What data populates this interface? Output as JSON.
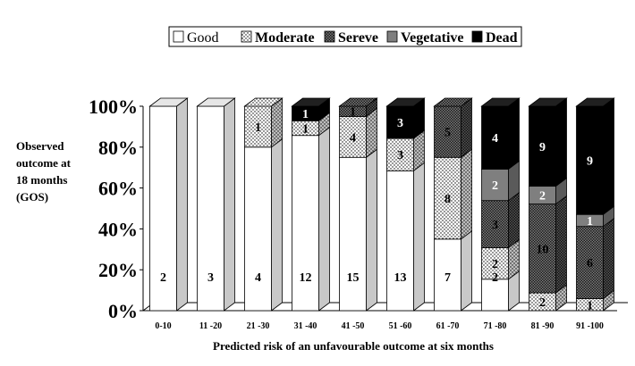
{
  "chart_data": {
    "type": "bar",
    "stacked": true,
    "percent_stacked": true,
    "three_d": true,
    "title": "",
    "xlabel": "Predicted risk of an unfavourable outcome at six months",
    "ylabel_lines": [
      "Observed",
      "outcome at",
      "18 months",
      "(GOS)"
    ],
    "ylim": [
      0,
      100
    ],
    "yticks": [
      "0%",
      "20%",
      "40%",
      "60%",
      "80%",
      "100%"
    ],
    "legend_position": "top",
    "categories": [
      "0-10",
      "11 -20",
      "21 -30",
      "31 -40",
      "41 -50",
      "51 -60",
      "61 -70",
      "71 -80",
      "81 -90",
      "91 -100"
    ],
    "series": [
      {
        "name": "Good",
        "pattern": "white",
        "counts": [
          2,
          3,
          4,
          12,
          15,
          13,
          7,
          2,
          0,
          0
        ],
        "labels": [
          "2",
          "3",
          "4",
          "12",
          "15",
          "13",
          "7",
          "2",
          "",
          ""
        ]
      },
      {
        "name": "Moderate",
        "pattern": "dots",
        "counts": [
          0,
          0,
          1,
          1,
          4,
          3,
          8,
          2,
          2,
          1
        ],
        "labels": [
          "",
          "",
          "1",
          "1",
          "4",
          "3",
          "8",
          "2",
          "2",
          "1"
        ]
      },
      {
        "name": "Sereve",
        "pattern": "grid",
        "counts": [
          0,
          0,
          0,
          0,
          1,
          0,
          5,
          3,
          10,
          6
        ],
        "labels": [
          "",
          "",
          "",
          "",
          "1",
          "",
          "5",
          "3",
          "10",
          "6"
        ]
      },
      {
        "name": "Vegetative",
        "pattern": "gray",
        "counts": [
          0,
          0,
          0,
          0,
          0,
          0,
          0,
          2,
          2,
          1
        ],
        "labels": [
          "",
          "",
          "",
          "",
          "",
          "",
          "",
          "2",
          "2",
          "1"
        ]
      },
      {
        "name": "Dead",
        "pattern": "black",
        "counts": [
          0,
          0,
          0,
          1,
          0,
          3,
          0,
          4,
          9,
          9
        ],
        "labels": [
          "",
          "",
          "",
          "1",
          "",
          "3",
          "",
          "4",
          "9",
          "9"
        ]
      }
    ]
  }
}
